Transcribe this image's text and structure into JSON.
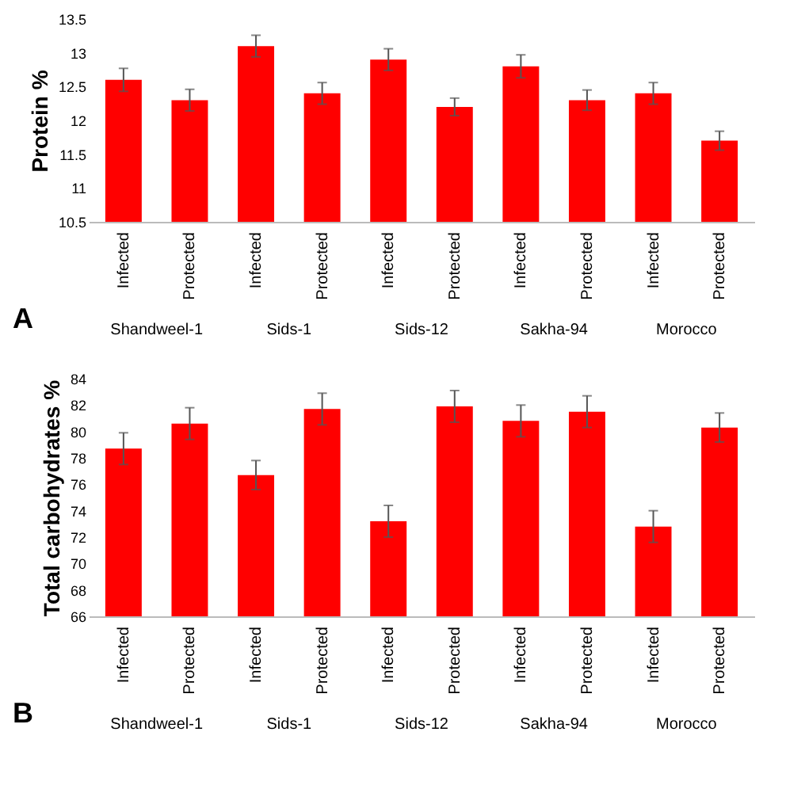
{
  "chart_data": [
    {
      "type": "bar",
      "title": "A",
      "ylabel": "Protein %",
      "color": "#ff0000",
      "categories": [
        "Infected",
        "Protected",
        "Infected",
        "Protected",
        "Infected",
        "Protected",
        "Infected",
        "Protected",
        "Infected",
        "Protected"
      ],
      "values": [
        12.6,
        12.3,
        13.1,
        12.4,
        12.9,
        12.2,
        12.8,
        12.3,
        12.4,
        11.7
      ],
      "errors": [
        0.17,
        0.16,
        0.16,
        0.16,
        0.16,
        0.13,
        0.17,
        0.15,
        0.16,
        0.14
      ],
      "ylim": [
        10.5,
        13.5
      ],
      "yticks": [
        10.5,
        11,
        11.5,
        12,
        12.5,
        13,
        13.5
      ],
      "grid": false,
      "annotations": [
        "Shandweel-1",
        "Sids-1",
        "Sids-12",
        "Sakha-94",
        "Morocco"
      ]
    },
    {
      "type": "bar",
      "title": "B",
      "ylabel": "Total carbohydrates  %",
      "color": "#ff0000",
      "categories": [
        "Infected",
        "Protected",
        "Infected",
        "Protected",
        "Infected",
        "Protected",
        "Infected",
        "Protected",
        "Infected",
        "Protected"
      ],
      "values": [
        78.7,
        80.6,
        76.7,
        81.7,
        73.2,
        81.9,
        80.8,
        81.5,
        72.8,
        80.3
      ],
      "errors": [
        1.2,
        1.2,
        1.1,
        1.2,
        1.2,
        1.2,
        1.2,
        1.2,
        1.2,
        1.1
      ],
      "ylim": [
        66,
        84
      ],
      "yticks": [
        66,
        68,
        70,
        72,
        74,
        76,
        78,
        80,
        82,
        84
      ],
      "grid": false,
      "annotations": [
        "Shandweel-1",
        "Sids-1",
        "Sids-12",
        "Sakha-94",
        "Morocco"
      ]
    }
  ]
}
